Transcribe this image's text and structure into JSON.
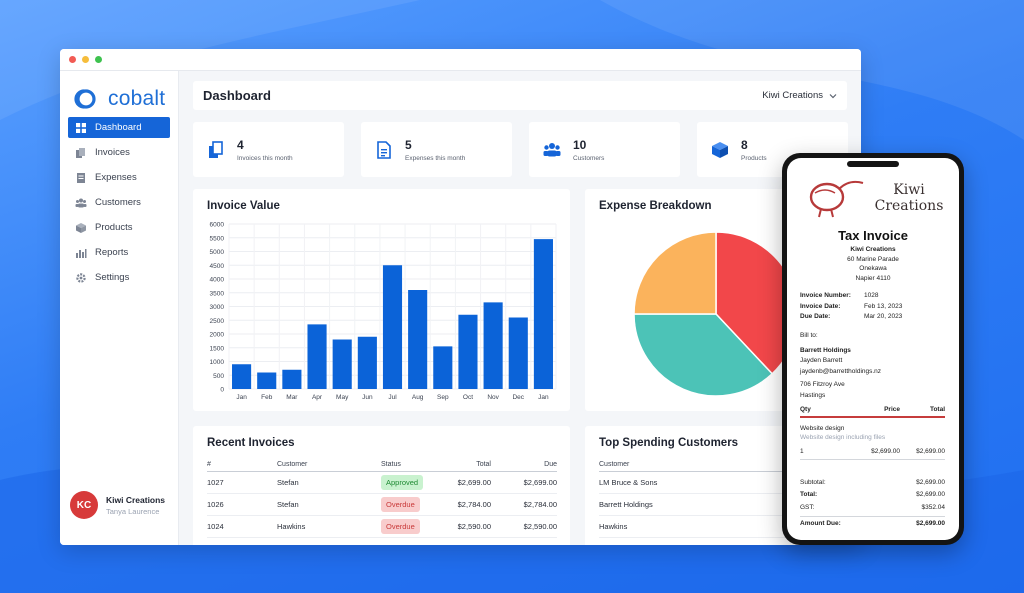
{
  "sidebar": {
    "logo_text": "cobalt",
    "items": [
      {
        "label": "Dashboard",
        "icon": "grid-icon"
      },
      {
        "label": "Invoices",
        "icon": "invoices-icon"
      },
      {
        "label": "Expenses",
        "icon": "expenses-icon"
      },
      {
        "label": "Customers",
        "icon": "customers-icon"
      },
      {
        "label": "Products",
        "icon": "products-icon"
      },
      {
        "label": "Reports",
        "icon": "reports-icon"
      },
      {
        "label": "Settings",
        "icon": "gear-icon"
      }
    ],
    "user": {
      "initials": "KC",
      "name": "Kiwi Creations",
      "subtitle": "Tanya Laurence"
    }
  },
  "header": {
    "title": "Dashboard",
    "company": "Kiwi Creations"
  },
  "stats": [
    {
      "value": "4",
      "label": "Invoices this month"
    },
    {
      "value": "5",
      "label": "Expenses this month"
    },
    {
      "value": "10",
      "label": "Customers"
    },
    {
      "value": "8",
      "label": "Products"
    }
  ],
  "chart_data": [
    {
      "type": "bar",
      "title": "Invoice Value",
      "categories": [
        "Jan",
        "Feb",
        "Mar",
        "Apr",
        "May",
        "Jun",
        "Jul",
        "Aug",
        "Sep",
        "Oct",
        "Nov",
        "Dec",
        "Jan"
      ],
      "values": [
        900,
        600,
        700,
        2350,
        1800,
        1900,
        4500,
        3600,
        1550,
        2700,
        3150,
        2600,
        5450
      ],
      "ylim": [
        0,
        6000
      ],
      "yticks": [
        0,
        500,
        1000,
        1500,
        2000,
        2500,
        3000,
        3500,
        4000,
        4500,
        5000,
        5500,
        6000
      ],
      "color": "#0b63d8",
      "grid": true
    },
    {
      "type": "pie",
      "title": "Expense Breakdown",
      "values": [
        38,
        37,
        25
      ],
      "colors": [
        "#f2474a",
        "#4cc3b7",
        "#fbb35c"
      ]
    }
  ],
  "recent_invoices": {
    "title": "Recent Invoices",
    "columns": [
      "#",
      "Customer",
      "Status",
      "Total",
      "Due"
    ],
    "rows": [
      {
        "num": "1027",
        "customer": "Stefan",
        "status": "Approved",
        "total": "$2,699.00",
        "due": "$2,699.00"
      },
      {
        "num": "1026",
        "customer": "Stefan",
        "status": "Overdue",
        "total": "$2,784.00",
        "due": "$2,784.00"
      },
      {
        "num": "1024",
        "customer": "Hawkins",
        "status": "Overdue",
        "total": "$2,590.00",
        "due": "$2,590.00"
      }
    ]
  },
  "top_customers": {
    "title": "Top Spending Customers",
    "column": "Customer",
    "rows": [
      "LM Bruce & Sons",
      "Barrett Holdings",
      "Hawkins"
    ]
  },
  "invoice": {
    "brand_line1": "Kiwi",
    "brand_line2": "Creations",
    "title": "Tax Invoice",
    "company": "Kiwi Creations",
    "address1": "60 Marine Parade",
    "address2": "Onekawa",
    "address3": "Napier 4110",
    "number_label": "Invoice Number:",
    "number": "1028",
    "date_label": "Invoice Date:",
    "date": "Feb 13, 2023",
    "due_label": "Due Date:",
    "due": "Mar 20, 2023",
    "bill_to_label": "Bill to:",
    "bill_company": "Barrett Holdings",
    "bill_name": "Jayden Barrett",
    "bill_email": "jaydenb@barrettholdings.nz",
    "bill_address1": "706 Fitzroy Ave",
    "bill_address2": "Hastings",
    "col_qty": "Qty",
    "col_price": "Price",
    "col_total": "Total",
    "item_name": "Website design",
    "item_desc": "Website design including files",
    "item_qty": "1",
    "item_price": "$2,699.00",
    "item_total": "$2,699.00",
    "subtotal_label": "Subtotal:",
    "subtotal": "$2,699.00",
    "total_label": "Total:",
    "total": "$2,699.00",
    "gst_label": "GST:",
    "gst": "$352.04",
    "amount_due_label": "Amount Due:",
    "amount_due": "$2,699.00"
  }
}
